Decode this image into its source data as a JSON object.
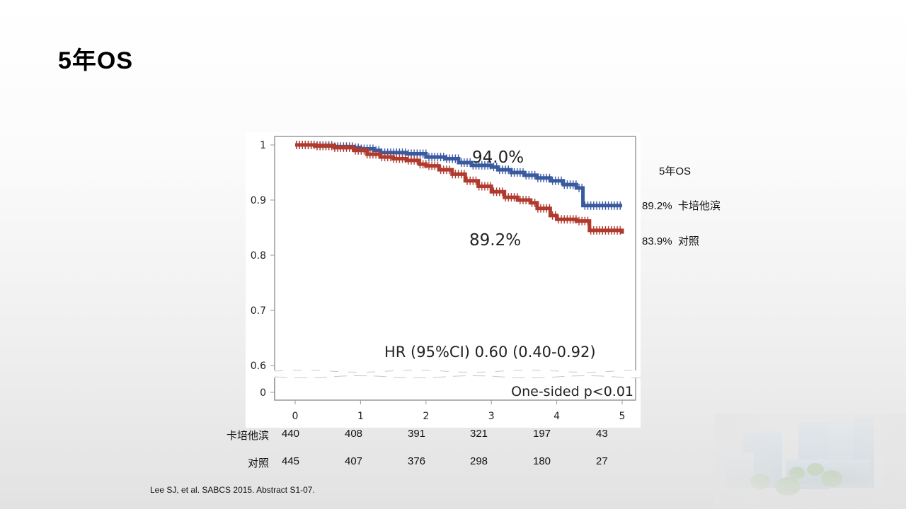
{
  "slide": {
    "title": "5年OS",
    "citation": "Lee SJ, et al. SABCS 2015. Abstract S1-07."
  },
  "side_legend": {
    "heading": "5年OS",
    "items": [
      {
        "value": "89.2%",
        "label": "卡培他滨"
      },
      {
        "value": "83.9%",
        "label": "对照"
      }
    ]
  },
  "risk_table": {
    "rows": [
      {
        "label": "卡培他滨",
        "values": [
          "440",
          "408",
          "391",
          "321",
          "197",
          "43"
        ]
      },
      {
        "label": "对照",
        "values": [
          "445",
          "407",
          "376",
          "298",
          "180",
          "27"
        ]
      }
    ]
  },
  "colors": {
    "capecitabine": "#3a5aa0",
    "control": "#b03a2e",
    "axis": "#888888",
    "text": "#222222"
  },
  "chart_data": {
    "type": "line",
    "title": "",
    "xlabel": "",
    "ylabel": "",
    "xlim": [
      0,
      5
    ],
    "ylim": [
      0.6,
      1.0
    ],
    "y_break": true,
    "x_ticks": [
      "0",
      "1",
      "2",
      "3",
      "4",
      "5"
    ],
    "y_ticks": [
      "1",
      "0.9",
      "0.8",
      "0.7",
      "0.6",
      "0"
    ],
    "annotations": {
      "upper_label": "94.0%",
      "lower_label": "89.2%",
      "hr": "HR (95%CI) 0.60 (0.40-0.92)",
      "p": "One-sided p<0.01"
    },
    "series": [
      {
        "name": "卡培他滨",
        "color_key": "capecitabine",
        "x": [
          0,
          0.3,
          0.6,
          0.9,
          1.0,
          1.2,
          1.3,
          1.5,
          1.7,
          2.0,
          2.3,
          2.5,
          2.7,
          3.0,
          3.1,
          3.3,
          3.5,
          3.7,
          3.9,
          4.1,
          4.3,
          4.4,
          5.0
        ],
        "y": [
          1.0,
          0.999,
          0.997,
          0.995,
          0.993,
          0.99,
          0.986,
          0.986,
          0.984,
          0.978,
          0.975,
          0.968,
          0.963,
          0.96,
          0.955,
          0.95,
          0.945,
          0.94,
          0.935,
          0.928,
          0.922,
          0.89,
          0.89
        ]
      },
      {
        "name": "对照",
        "color_key": "control",
        "x": [
          0,
          0.3,
          0.6,
          0.9,
          1.1,
          1.3,
          1.5,
          1.7,
          1.9,
          2.0,
          2.2,
          2.4,
          2.6,
          2.8,
          3.0,
          3.2,
          3.4,
          3.6,
          3.7,
          3.9,
          4.0,
          4.3,
          4.5,
          5.0
        ],
        "y": [
          1.0,
          0.998,
          0.995,
          0.99,
          0.983,
          0.978,
          0.975,
          0.972,
          0.965,
          0.962,
          0.955,
          0.947,
          0.935,
          0.925,
          0.915,
          0.905,
          0.9,
          0.895,
          0.885,
          0.872,
          0.865,
          0.862,
          0.845,
          0.839
        ]
      }
    ]
  }
}
